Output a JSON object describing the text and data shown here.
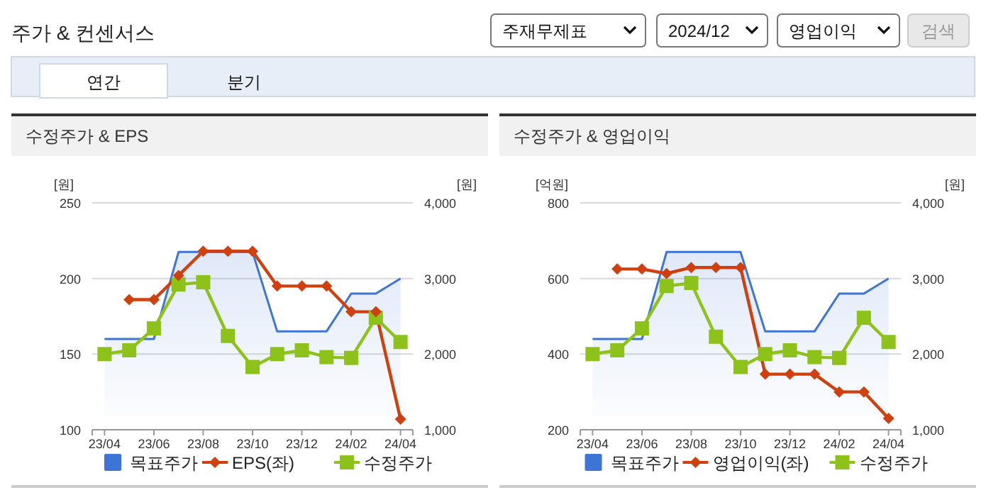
{
  "chart_data": [
    {
      "type": "other",
      "title": "주가 & 컨센서스",
      "annotations": [
        "주재무제표",
        "2024/12",
        "영업이익",
        "검색",
        "연간",
        "분기"
      ]
    },
    {
      "type": "line",
      "title": "수정주가 & EPS",
      "ylabel": "[원]",
      "y2label": "[원]",
      "categories": [
        "23/04",
        null,
        "23/06",
        null,
        "23/08",
        null,
        "23/10",
        null,
        "23/12",
        null,
        "24/02",
        null,
        "24/04"
      ],
      "ylim": [
        100,
        250
      ],
      "yticks": [
        100,
        150,
        200,
        250
      ],
      "y2lim": [
        1000,
        4000
      ],
      "y2ticks": [
        {
          "value": 1000,
          "label": "1,000"
        },
        {
          "value": 2000,
          "label": "2,000"
        },
        {
          "value": 3000,
          "label": "3,000"
        },
        {
          "value": 4000,
          "label": "4,000"
        }
      ],
      "grid": "y",
      "legend": "bottom",
      "series": [
        {
          "name": "목표주가",
          "type": "area",
          "axis": "y2",
          "color": "#3d74d6",
          "marker": "none",
          "values": [
            2200,
            2200,
            2200,
            3350,
            3350,
            3350,
            3350,
            2300,
            2300,
            2300,
            2800,
            2800,
            3000
          ]
        },
        {
          "name": "EPS(좌)",
          "type": "line",
          "color": "#d0400f",
          "marker": "diamond",
          "values": [
            null,
            186,
            186,
            202,
            218,
            218,
            218,
            195,
            195,
            195,
            178,
            178,
            107
          ]
        },
        {
          "name": "수정주가",
          "type": "line",
          "axis": "y2",
          "color": "#8cc21a",
          "marker": "square",
          "values": [
            2000,
            2050,
            2340,
            2920,
            2950,
            2240,
            1830,
            2000,
            2050,
            1960,
            1950,
            2480,
            2160
          ]
        }
      ]
    },
    {
      "type": "line",
      "title": "수정주가 & 영업이익",
      "ylabel": "[억원]",
      "y2label": "[원]",
      "categories": [
        "23/04",
        null,
        "23/06",
        null,
        "23/08",
        null,
        "23/10",
        null,
        "23/12",
        null,
        "24/02",
        null,
        "24/04"
      ],
      "ylim": [
        200,
        800
      ],
      "yticks": [
        200,
        400,
        600,
        800
      ],
      "y2lim": [
        1000,
        4000
      ],
      "y2ticks": [
        {
          "value": 1000,
          "label": "1,000"
        },
        {
          "value": 2000,
          "label": "2,000"
        },
        {
          "value": 3000,
          "label": "3,000"
        },
        {
          "value": 4000,
          "label": "4,000"
        }
      ],
      "grid": "y",
      "legend": "bottom",
      "series": [
        {
          "name": "목표주가",
          "type": "area",
          "axis": "y2",
          "color": "#3d74d6",
          "marker": "none",
          "values": [
            2200,
            2200,
            2200,
            3350,
            3350,
            3350,
            3350,
            2300,
            2300,
            2300,
            2800,
            2800,
            3000
          ]
        },
        {
          "name": "영업이익(좌)",
          "type": "line",
          "color": "#d0400f",
          "marker": "diamond",
          "values": [
            null,
            625,
            625,
            613,
            629,
            629,
            629,
            347,
            347,
            347,
            300,
            300,
            230
          ]
        },
        {
          "name": "수정주가",
          "type": "line",
          "axis": "y2",
          "color": "#8cc21a",
          "marker": "square",
          "values": [
            2000,
            2050,
            2340,
            2900,
            2940,
            2230,
            1830,
            2000,
            2050,
            1960,
            1950,
            2480,
            2160
          ]
        }
      ]
    }
  ]
}
